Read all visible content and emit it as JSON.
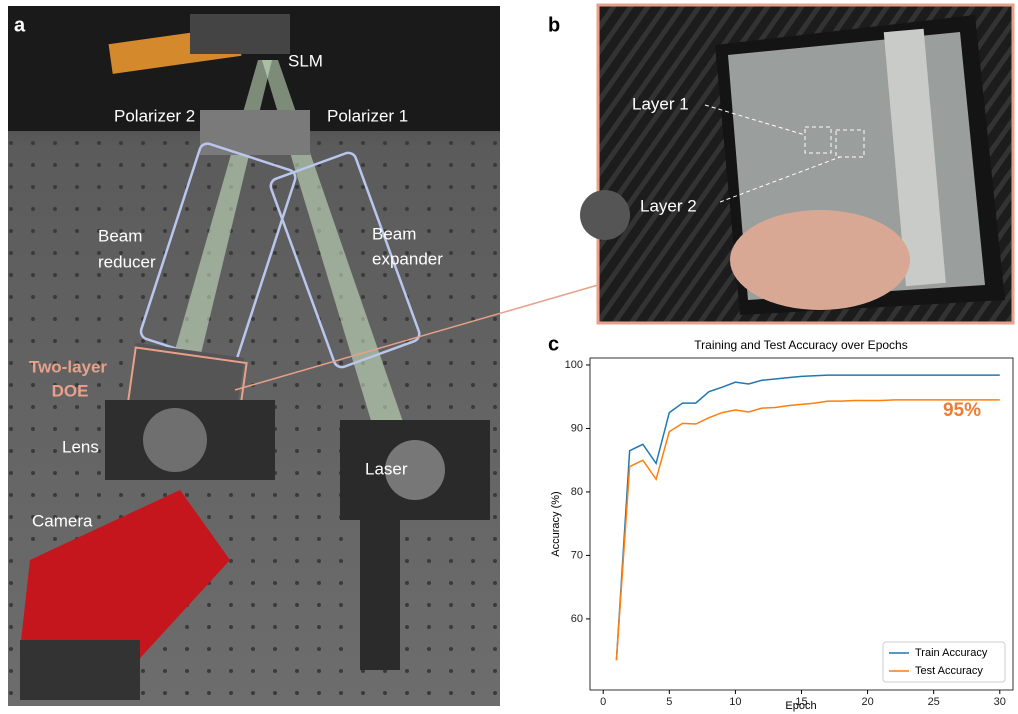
{
  "panels": {
    "a": {
      "letter": "a",
      "labels": {
        "slm": "SLM",
        "polarizer2": "Polarizer 2",
        "polarizer1": "Polarizer 1",
        "beam_reducer": [
          "Beam",
          "reducer"
        ],
        "beam_expander": [
          "Beam",
          "expander"
        ],
        "doe": [
          "Two-layer",
          "DOE"
        ],
        "lens": "Lens",
        "laser": "Laser",
        "camera": "Camera"
      }
    },
    "b": {
      "letter": "b",
      "labels": {
        "layer1": "Layer 1",
        "layer2": "Layer 2"
      }
    },
    "c": {
      "letter": "c"
    }
  },
  "chart_data": {
    "type": "line",
    "title": "Training and Test Accuracy over Epochs",
    "x_label": "Epoch",
    "y_label": "Accuracy (%)",
    "x": [
      1,
      2,
      3,
      4,
      5,
      6,
      7,
      8,
      9,
      10,
      11,
      12,
      13,
      14,
      15,
      16,
      17,
      18,
      19,
      20,
      21,
      22,
      23,
      24,
      25,
      26,
      27,
      28,
      29,
      30
    ],
    "series": [
      {
        "name": "Train Accuracy",
        "color": "#1f77b4",
        "values": [
          53.5,
          86.5,
          87.5,
          84.5,
          92.5,
          94,
          94,
          95.8,
          96.5,
          97.3,
          97,
          97.6,
          97.8,
          98,
          98.2,
          98.3,
          98.4,
          98.4,
          98.4,
          98.4,
          98.4,
          98.4,
          98.4,
          98.4,
          98.4,
          98.4,
          98.4,
          98.4,
          98.4,
          98.4
        ]
      },
      {
        "name": "Test Accuracy",
        "color": "#ff7f0e",
        "values": [
          53.5,
          84,
          85,
          82,
          89.5,
          90.8,
          90.7,
          91.7,
          92.5,
          92.9,
          92.6,
          93.2,
          93.3,
          93.6,
          93.8,
          94,
          94.3,
          94.3,
          94.4,
          94.4,
          94.4,
          94.5,
          94.5,
          94.5,
          94.5,
          94.5,
          94.5,
          94.5,
          94.5,
          94.5
        ]
      }
    ],
    "annotation": "95%",
    "xlim": [
      -1,
      31
    ],
    "ylim": [
      48.8,
      101.1
    ],
    "xticks": [
      0,
      5,
      10,
      15,
      20,
      25,
      30
    ],
    "yticks": [
      60,
      70,
      80,
      90,
      100
    ],
    "legend": "lower right"
  }
}
